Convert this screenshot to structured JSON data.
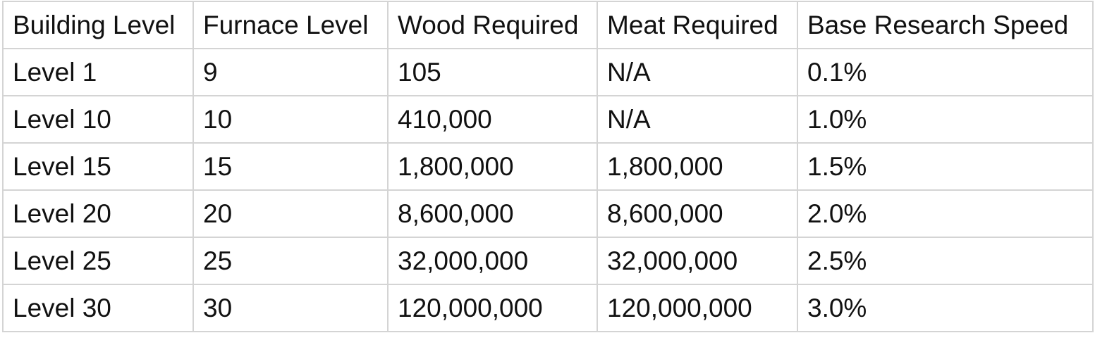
{
  "table": {
    "header": [
      "Building Level",
      "Furnace Level",
      "Wood Required",
      "Meat Required",
      "Base Research Speed"
    ],
    "rows": [
      [
        "Level 1",
        "9",
        "105",
        "N/A",
        "0.1%"
      ],
      [
        "Level 10",
        "10",
        "410,000",
        "N/A",
        "1.0%"
      ],
      [
        "Level 15",
        "15",
        "1,800,000",
        "1,800,000",
        "1.5%"
      ],
      [
        "Level 20",
        "20",
        "8,600,000",
        "8,600,000",
        "2.0%"
      ],
      [
        "Level 25",
        "25",
        "32,000,000",
        "32,000,000",
        "2.5%"
      ],
      [
        "Level 30",
        "30",
        "120,000,000",
        "120,000,000",
        "3.0%"
      ]
    ]
  }
}
